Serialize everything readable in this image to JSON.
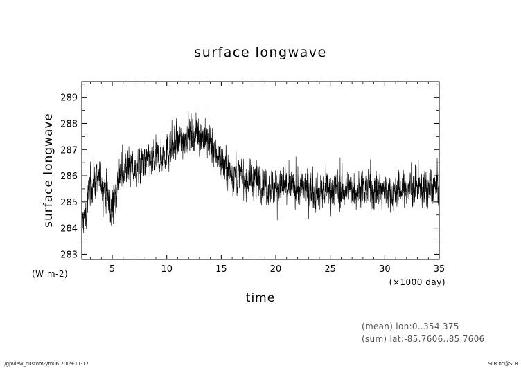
{
  "chart_data": {
    "type": "line",
    "title": "surface longwave",
    "xlabel": "time",
    "ylabel": "surface longwave",
    "x_unit": "(×1000 day)",
    "y_unit": "(W m-2)",
    "xlim": [
      2.2,
      35
    ],
    "ylim": [
      282.8,
      289.6
    ],
    "xticks": [
      5,
      10,
      15,
      20,
      25,
      30,
      35
    ],
    "yticks": [
      283,
      284,
      285,
      286,
      287,
      288,
      289
    ],
    "grid": false,
    "series": [
      {
        "color": "#000000",
        "trend": {
          "x": [
            2.2,
            2.6,
            3.0,
            3.5,
            4.0,
            4.5,
            4.9,
            5.3,
            5.8,
            6.2,
            7.0,
            8.0,
            9.0,
            10.0,
            11.0,
            12.0,
            13.0,
            14.0,
            15.0,
            16.0,
            17.0,
            18.0,
            20.0,
            22.0,
            24.0,
            26.0,
            28.0,
            30.0,
            32.0,
            34.0,
            35.0
          ],
          "y": [
            284.1,
            284.6,
            285.6,
            285.9,
            285.8,
            285.5,
            284.7,
            285.3,
            286.0,
            286.3,
            286.2,
            286.5,
            286.6,
            286.9,
            287.2,
            287.6,
            287.6,
            287.2,
            286.6,
            286.1,
            285.9,
            285.8,
            285.6,
            285.5,
            285.4,
            285.5,
            285.5,
            285.4,
            285.5,
            285.5,
            285.6
          ]
        },
        "noise_amplitude": 0.55
      }
    ]
  },
  "annotations": {
    "mean_label": "(mean) lon:0..354.375",
    "sum_label": "(sum) lat:-85.7606..85.7606"
  },
  "footer": {
    "left": "./gpview_custom-ym06   2009-11-17",
    "right": "SLR.nc@SLR"
  }
}
